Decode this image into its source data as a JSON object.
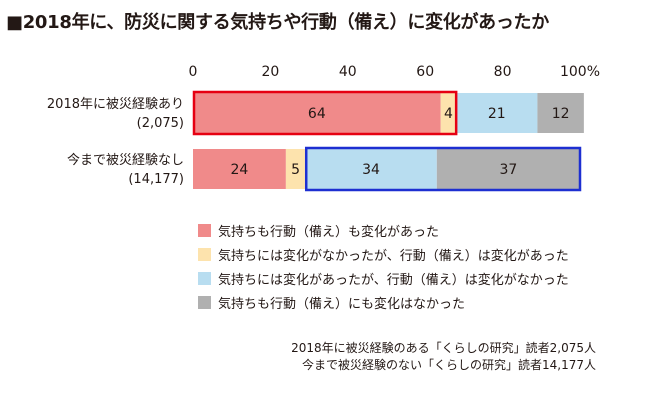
{
  "title": "■2018年に、防災に関する気持ちや行動（備え）に変化があったか",
  "chart_data": {
    "type": "bar",
    "orientation": "horizontal",
    "stacked": true,
    "xlim": [
      0,
      100
    ],
    "ticks": [
      "0",
      "20",
      "40",
      "60",
      "80",
      "100%"
    ],
    "categories": [
      {
        "label": "2018年に被災経験あり",
        "sub": "(2,075)"
      },
      {
        "label": "今まで被災経験なし",
        "sub": "(14,177)"
      }
    ],
    "series": [
      {
        "name": "気持ちも行動（備え）も変化があった",
        "color": "#f08a8a",
        "values": [
          64,
          24
        ]
      },
      {
        "name": "気持ちには変化がなかったが、行動（備え）は変化があった",
        "color": "#fde3ad",
        "values": [
          4,
          5
        ]
      },
      {
        "name": "気持ちには変化があったが、行動（備え）は変化がなかった",
        "color": "#b8ddf0",
        "values": [
          21,
          34
        ]
      },
      {
        "name": "気持ちも行動（備え）にも変化はなかった",
        "color": "#b0b0b0",
        "values": [
          12,
          37
        ]
      }
    ],
    "highlights": [
      {
        "row": 0,
        "from_series": 0,
        "to_series": 1,
        "color": "#e60012"
      },
      {
        "row": 1,
        "from_series": 2,
        "to_series": 3,
        "color": "#1d2fd1"
      }
    ]
  },
  "notes": [
    "2018年に被災経験のある「くらしの研究」読者2,075人",
    "今まで被災経験のない「くらしの研究」読者14,177人"
  ]
}
